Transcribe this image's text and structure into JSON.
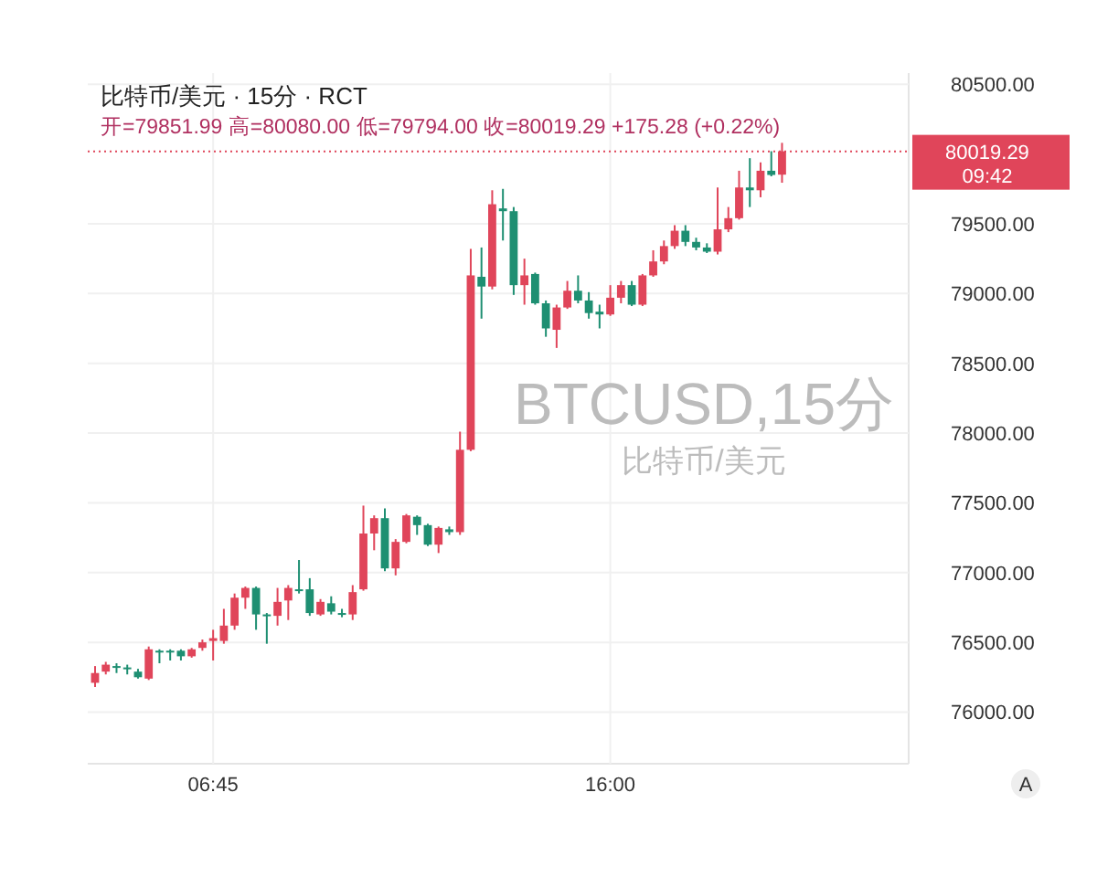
{
  "chart_data": {
    "type": "candlestick",
    "title": "比特币/美元 · 15分 · RCT",
    "subtitle": "开=79851.99 高=80080.00 低=79794.00 收=80019.29 +175.28 (+0.22%)",
    "x": [
      4,
      4.25,
      4.5,
      4.75,
      5,
      5.25,
      5.5,
      5.75,
      6,
      6.25,
      6.5,
      6.75,
      7,
      7.25,
      7.5,
      7.75,
      8,
      8.25,
      8.5,
      8.75,
      9,
      9.25,
      9.5,
      9.75,
      10,
      10.25,
      10.5,
      10.75,
      11,
      11.25,
      11.5,
      11.75,
      12,
      12.25,
      12.5,
      12.75,
      13,
      13.25,
      13.5,
      13.75,
      14,
      14.25,
      14.5,
      14.75,
      15,
      15.25,
      15.5,
      15.75,
      16,
      16.25,
      16.5,
      16.75,
      17,
      17.25,
      17.5,
      17.75,
      18,
      18.25,
      18.5,
      18.75,
      19,
      19.25,
      19.5,
      19.75,
      20
    ],
    "ohlc": [
      [
        76210,
        76330,
        76180,
        76280
      ],
      [
        76290,
        76360,
        76270,
        76340
      ],
      [
        76330,
        76350,
        76280,
        76320
      ],
      [
        76320,
        76340,
        76270,
        76310
      ],
      [
        76290,
        76310,
        76240,
        76250
      ],
      [
        76240,
        76470,
        76230,
        76450
      ],
      [
        76440,
        76450,
        76350,
        76430
      ],
      [
        76440,
        76450,
        76370,
        76430
      ],
      [
        76440,
        76450,
        76370,
        76400
      ],
      [
        76400,
        76460,
        76390,
        76450
      ],
      [
        76460,
        76520,
        76440,
        76500
      ],
      [
        76510,
        76590,
        76370,
        76530
      ],
      [
        76510,
        76740,
        76490,
        76620
      ],
      [
        76620,
        76850,
        76590,
        76820
      ],
      [
        76820,
        76900,
        76740,
        76890
      ],
      [
        76890,
        76900,
        76590,
        76700
      ],
      [
        76700,
        76710,
        76490,
        76690
      ],
      [
        76690,
        76890,
        76620,
        76790
      ],
      [
        76800,
        76910,
        76660,
        76890
      ],
      [
        76880,
        77090,
        76850,
        76870
      ],
      [
        76880,
        76960,
        76690,
        76710
      ],
      [
        76700,
        76810,
        76690,
        76790
      ],
      [
        76780,
        76830,
        76700,
        76720
      ],
      [
        76710,
        76740,
        76680,
        76700
      ],
      [
        76700,
        76910,
        76660,
        76860
      ],
      [
        76880,
        77480,
        76870,
        77280
      ],
      [
        77280,
        77410,
        77160,
        77390
      ],
      [
        77390,
        77460,
        77010,
        77030
      ],
      [
        77030,
        77240,
        76980,
        77220
      ],
      [
        77220,
        77420,
        77210,
        77410
      ],
      [
        77400,
        77410,
        77270,
        77340
      ],
      [
        77340,
        77350,
        77190,
        77200
      ],
      [
        77200,
        77330,
        77140,
        77320
      ],
      [
        77310,
        77330,
        77270,
        77290
      ],
      [
        77290,
        78010,
        77270,
        77880
      ],
      [
        77880,
        79320,
        77870,
        79130
      ],
      [
        79120,
        79330,
        78820,
        79050
      ],
      [
        79050,
        79740,
        79030,
        79640
      ],
      [
        79610,
        79750,
        79380,
        79590
      ],
      [
        79590,
        79620,
        78990,
        79060
      ],
      [
        79060,
        79250,
        78920,
        79130
      ],
      [
        79140,
        79150,
        78920,
        78930
      ],
      [
        78930,
        78950,
        78690,
        78750
      ],
      [
        78740,
        78920,
        78610,
        78900
      ],
      [
        78900,
        79090,
        78890,
        79020
      ],
      [
        79020,
        79130,
        78930,
        78950
      ],
      [
        78950,
        79010,
        78820,
        78860
      ],
      [
        78870,
        78920,
        78750,
        78850
      ],
      [
        78850,
        79060,
        78840,
        78970
      ],
      [
        78970,
        79090,
        78930,
        79060
      ],
      [
        79060,
        79090,
        78910,
        78920
      ],
      [
        78920,
        79140,
        78910,
        79130
      ],
      [
        79130,
        79310,
        79120,
        79230
      ],
      [
        79230,
        79380,
        79210,
        79340
      ],
      [
        79340,
        79490,
        79320,
        79450
      ],
      [
        79450,
        79490,
        79340,
        79370
      ],
      [
        79370,
        79400,
        79310,
        79330
      ],
      [
        79330,
        79360,
        79290,
        79300
      ],
      [
        79300,
        79760,
        79280,
        79460
      ],
      [
        79460,
        79620,
        79440,
        79540
      ],
      [
        79540,
        79880,
        79530,
        79760
      ],
      [
        79760,
        79970,
        79620,
        79740
      ],
      [
        79740,
        79940,
        79690,
        79880
      ],
      [
        79880,
        80020,
        79840,
        79850
      ],
      [
        79851.99,
        80080,
        79794,
        80019.29
      ]
    ],
    "colors": [
      "#e0455a",
      "#e0455a",
      "#1e8f72",
      "#1e8f72",
      "#1e8f72",
      "#e0455a",
      "#1e8f72",
      "#1e8f72",
      "#1e8f72",
      "#e0455a",
      "#e0455a",
      "#e0455a",
      "#e0455a",
      "#e0455a",
      "#e0455a",
      "#1e8f72",
      "#1e8f72",
      "#e0455a",
      "#e0455a",
      "#1e8f72",
      "#1e8f72",
      "#e0455a",
      "#1e8f72",
      "#1e8f72",
      "#e0455a",
      "#e0455a",
      "#e0455a",
      "#1e8f72",
      "#e0455a",
      "#e0455a",
      "#1e8f72",
      "#1e8f72",
      "#e0455a",
      "#1e8f72",
      "#e0455a",
      "#e0455a",
      "#1e8f72",
      "#e0455a",
      "#1e8f72",
      "#1e8f72",
      "#e0455a",
      "#1e8f72",
      "#1e8f72",
      "#e0455a",
      "#e0455a",
      "#1e8f72",
      "#1e8f72",
      "#1e8f72",
      "#e0455a",
      "#e0455a",
      "#1e8f72",
      "#e0455a",
      "#e0455a",
      "#e0455a",
      "#e0455a",
      "#1e8f72",
      "#1e8f72",
      "#1e8f72",
      "#e0455a",
      "#e0455a",
      "#e0455a",
      "#1e8f72",
      "#e0455a",
      "#1e8f72",
      "#e0455a"
    ],
    "xlim": [
      3.83,
      22.95
    ],
    "xticks": [
      {
        "value": 6.75,
        "label": "06:45"
      },
      {
        "value": 16,
        "label": "16:00"
      }
    ],
    "ylim": [
      75630,
      80580
    ],
    "yticks": [
      {
        "value": 76000,
        "label": "76000.00"
      },
      {
        "value": 76500,
        "label": "76500.00"
      },
      {
        "value": 77000,
        "label": "77000.00"
      },
      {
        "value": 77500,
        "label": "77500.00"
      },
      {
        "value": 78000,
        "label": "78000.00"
      },
      {
        "value": 78500,
        "label": "78500.00"
      },
      {
        "value": 79000,
        "label": "79000.00"
      },
      {
        "value": 79500,
        "label": "79500.00"
      },
      {
        "value": 80500,
        "label": "80500.00"
      }
    ],
    "grid": true,
    "ref_lines": [
      {
        "axis": "y",
        "value": 80019.29,
        "label": "80019.29",
        "color": "#e0455a",
        "line_style": "dotted"
      }
    ],
    "annotations": [
      "BTCUSD,15分",
      "比特币/美元",
      "09:42",
      "A"
    ]
  }
}
